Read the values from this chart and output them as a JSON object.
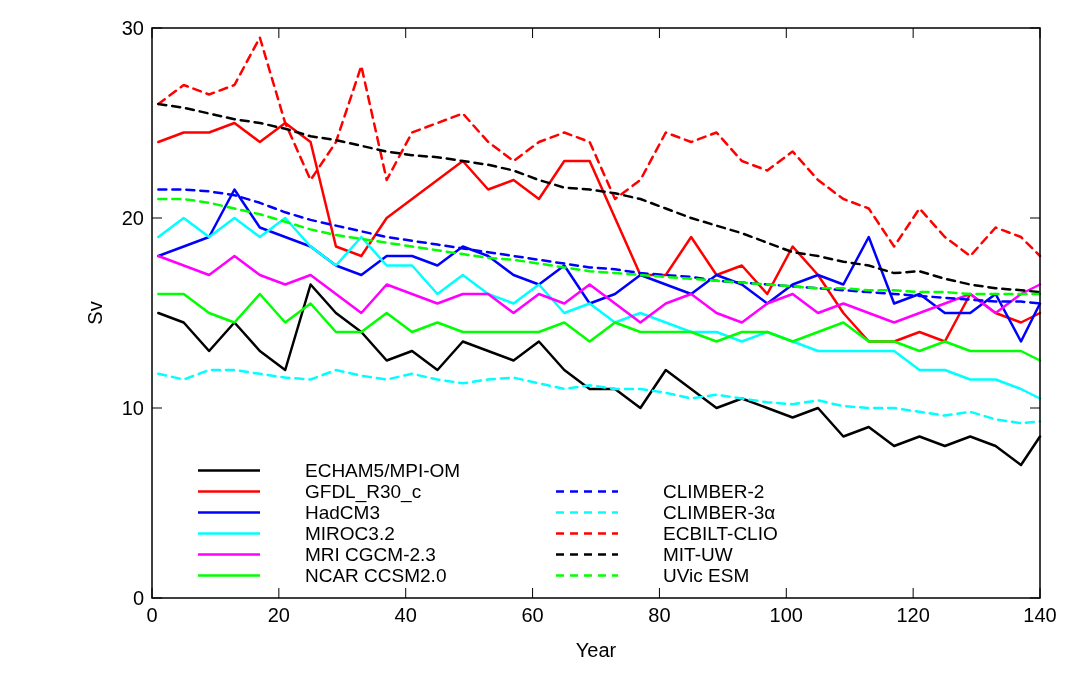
{
  "chart_data": {
    "type": "line",
    "xlabel": "Year",
    "ylabel": "Sv",
    "xlim": [
      0,
      140
    ],
    "xticks": [
      0,
      20,
      40,
      60,
      80,
      100,
      120,
      140
    ],
    "ylim": [
      0,
      30
    ],
    "yticks": [
      0,
      10,
      20,
      30
    ],
    "grid": false,
    "legend": "bottom left",
    "x": [
      1,
      5,
      9,
      13,
      17,
      21,
      25,
      29,
      33,
      37,
      41,
      45,
      49,
      53,
      57,
      61,
      65,
      69,
      73,
      77,
      81,
      85,
      89,
      93,
      97,
      101,
      105,
      109,
      113,
      117,
      121,
      125,
      129,
      133,
      137,
      140
    ],
    "series": [
      {
        "name": "ECHAM5/MPI-OM",
        "color": "#000000",
        "line_style": "solid",
        "values": [
          15,
          14.5,
          13,
          14.5,
          13,
          12,
          16.5,
          15,
          14,
          12.5,
          13,
          12,
          13.5,
          13,
          12.5,
          13.5,
          12,
          11,
          11,
          10,
          12,
          11,
          10,
          10.5,
          10,
          9.5,
          10,
          8.5,
          9,
          8,
          8.5,
          8,
          8.5,
          8,
          7,
          8.5
        ]
      },
      {
        "name": "GFDL_R30_c",
        "color": "#ff0000",
        "line_style": "solid",
        "values": [
          24,
          24.5,
          24.5,
          25,
          24,
          25,
          24,
          18.5,
          18,
          20,
          21,
          22,
          23,
          21.5,
          22,
          21,
          23,
          23,
          20,
          17,
          17,
          19,
          17,
          17.5,
          16,
          18.5,
          17,
          15,
          13.5,
          13.5,
          14,
          13.5,
          16,
          15,
          14.5,
          15
        ]
      },
      {
        "name": "HadCM3",
        "color": "#0000ff",
        "line_style": "solid",
        "values": [
          18,
          18.5,
          19,
          21.5,
          19.5,
          19,
          18.5,
          17.5,
          17,
          18,
          18,
          17.5,
          18.5,
          18,
          17,
          16.5,
          17.5,
          15.5,
          16,
          17,
          16.5,
          16,
          17,
          16.5,
          15.5,
          16.5,
          17,
          16.5,
          19,
          15.5,
          16,
          15,
          15,
          16,
          13.5,
          15.5
        ]
      },
      {
        "name": "MIROC3.2",
        "color": "#00ffff",
        "line_style": "solid",
        "values": [
          19,
          20,
          19,
          20,
          19,
          20,
          18.5,
          17.5,
          19,
          17.5,
          17.5,
          16,
          17,
          16,
          15.5,
          16.5,
          15,
          15.5,
          14.5,
          15,
          14.5,
          14,
          14,
          13.5,
          14,
          13.5,
          13,
          13,
          13,
          13,
          12,
          12,
          11.5,
          11.5,
          11,
          10.5
        ]
      },
      {
        "name": "MRI CGCM-2.3",
        "color": "#ff00ff",
        "line_style": "solid",
        "values": [
          18,
          17.5,
          17,
          18,
          17,
          16.5,
          17,
          16,
          15,
          16.5,
          16,
          15.5,
          16,
          16,
          15,
          16,
          15.5,
          16.5,
          15.5,
          14.5,
          15.5,
          16,
          15,
          14.5,
          15.5,
          16,
          15,
          15.5,
          15,
          14.5,
          15,
          15.5,
          16,
          15,
          16,
          16.5
        ]
      },
      {
        "name": "NCAR CCSM2.0",
        "color": "#00ff00",
        "line_style": "solid",
        "values": [
          16,
          16,
          15,
          14.5,
          16,
          14.5,
          15.5,
          14,
          14,
          15,
          14,
          14.5,
          14,
          14,
          14,
          14,
          14.5,
          13.5,
          14.5,
          14,
          14,
          14,
          13.5,
          14,
          14,
          13.5,
          14,
          14.5,
          13.5,
          13.5,
          13,
          13.5,
          13,
          13,
          13,
          12.5
        ]
      },
      {
        "name": "CLIMBER-2",
        "color": "#0000ff",
        "line_style": "dashed",
        "values": [
          21.5,
          21.5,
          21.4,
          21.2,
          20.8,
          20.3,
          19.9,
          19.6,
          19.3,
          19,
          18.8,
          18.6,
          18.4,
          18.2,
          18,
          17.8,
          17.6,
          17.4,
          17.3,
          17.1,
          17,
          16.9,
          16.7,
          16.6,
          16.5,
          16.4,
          16.3,
          16.2,
          16.1,
          16,
          15.9,
          15.8,
          15.7,
          15.6,
          15.6,
          15.5
        ]
      },
      {
        "name": "CLIMBER-3α",
        "color": "#00ffff",
        "line_style": "dashed",
        "values": [
          11.8,
          11.5,
          12,
          12,
          11.8,
          11.6,
          11.5,
          12,
          11.7,
          11.5,
          11.8,
          11.5,
          11.3,
          11.5,
          11.6,
          11.3,
          11,
          11.2,
          11,
          11,
          10.8,
          10.5,
          10.7,
          10.5,
          10.3,
          10.2,
          10.4,
          10.1,
          10,
          10,
          9.8,
          9.6,
          9.8,
          9.4,
          9.2,
          9.3
        ]
      },
      {
        "name": "ECBILT-CLIO",
        "color": "#ff0000",
        "line_style": "dashed",
        "values": [
          26,
          27,
          26.5,
          27,
          29.5,
          25,
          22,
          24,
          28,
          22,
          24.5,
          25,
          25.5,
          24,
          23,
          24,
          24.5,
          24,
          21,
          22,
          24.5,
          24,
          24.5,
          23,
          22.5,
          23.5,
          22,
          21,
          20.5,
          18.5,
          20.5,
          19,
          18,
          19.5,
          19,
          18
        ]
      },
      {
        "name": "MIT-UW",
        "color": "#000000",
        "line_style": "dashed",
        "values": [
          26,
          25.8,
          25.5,
          25.2,
          25,
          24.7,
          24.3,
          24.1,
          23.8,
          23.5,
          23.3,
          23.2,
          23,
          22.8,
          22.5,
          22,
          21.6,
          21.5,
          21.3,
          21,
          20.5,
          20,
          19.6,
          19.2,
          18.7,
          18.2,
          18,
          17.7,
          17.5,
          17.1,
          17.2,
          16.8,
          16.5,
          16.3,
          16.2,
          16.1
        ]
      },
      {
        "name": "UVic ESM",
        "color": "#00ff00",
        "line_style": "dashed",
        "values": [
          21,
          21,
          20.8,
          20.5,
          20.2,
          19.8,
          19.4,
          19.1,
          18.9,
          18.7,
          18.5,
          18.3,
          18.1,
          17.9,
          17.8,
          17.6,
          17.4,
          17.2,
          17.1,
          17,
          16.9,
          16.8,
          16.7,
          16.6,
          16.5,
          16.4,
          16.3,
          16.3,
          16.2,
          16.2,
          16.1,
          16.1,
          16,
          16,
          16,
          16
        ]
      }
    ]
  }
}
